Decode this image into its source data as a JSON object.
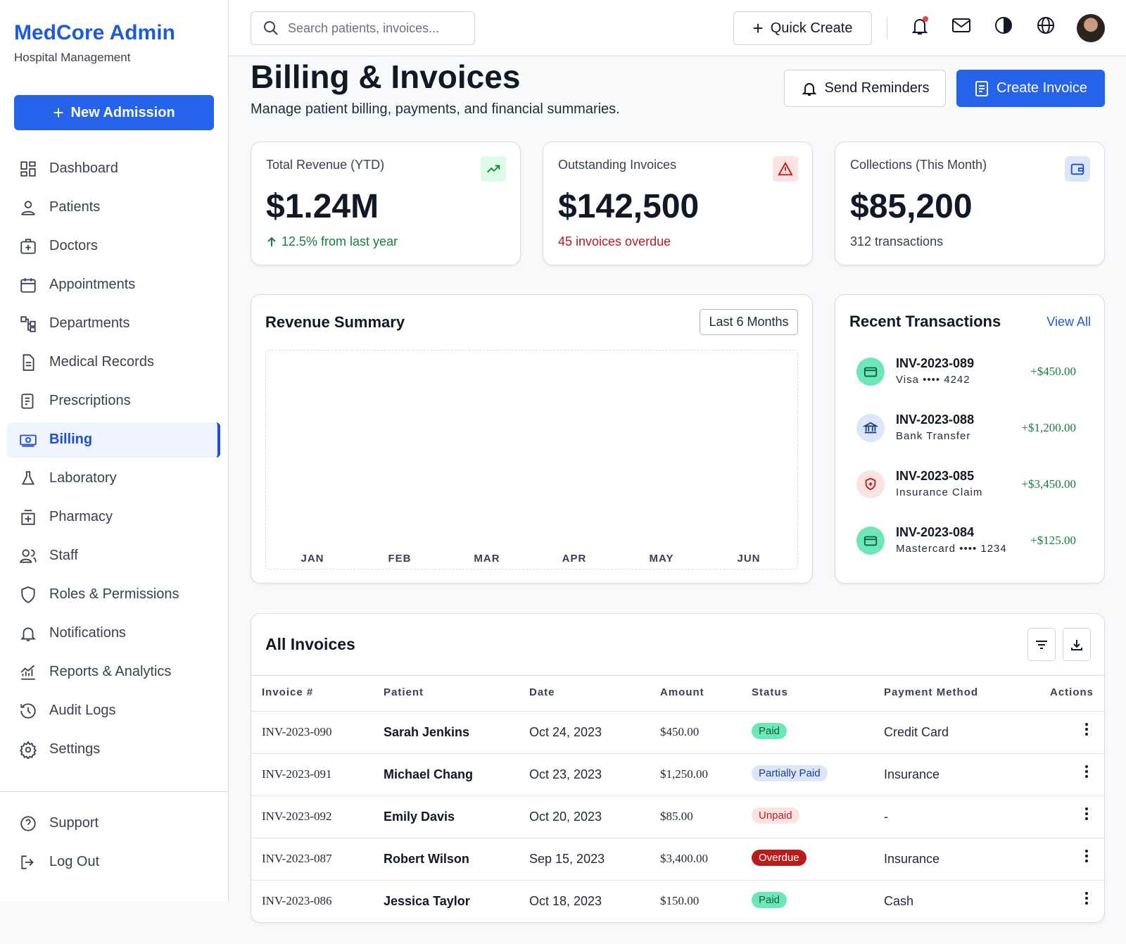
{
  "sidebar": {
    "brand": "MedCore Admin",
    "subtitle": "Hospital Management",
    "new_button": "New Admission",
    "nav": [
      {
        "label": "Dashboard"
      },
      {
        "label": "Patients"
      },
      {
        "label": "Doctors"
      },
      {
        "label": "Appointments"
      },
      {
        "label": "Departments"
      },
      {
        "label": "Medical Records"
      },
      {
        "label": "Prescriptions"
      },
      {
        "label": "Billing",
        "active": true
      },
      {
        "label": "Laboratory"
      },
      {
        "label": "Pharmacy"
      },
      {
        "label": "Staff"
      },
      {
        "label": "Roles & Permissions"
      },
      {
        "label": "Notifications"
      },
      {
        "label": "Reports & Analytics"
      },
      {
        "label": "Audit Logs"
      },
      {
        "label": "Settings"
      }
    ],
    "footer_nav": [
      "Support",
      "Log Out"
    ]
  },
  "header": {
    "search_placeholder": "Search patients, invoices...",
    "quick_create": "Quick Create"
  },
  "page": {
    "title": "Billing & Invoices",
    "subtitle": "Manage patient billing, payments, and financial summaries.",
    "buttons": [
      "Send Reminders",
      "Create Invoice"
    ]
  },
  "stats": [
    {
      "label": "Total Revenue (YTD)",
      "value": "$1.24M",
      "note": "12.5% from last year",
      "tone": "up"
    },
    {
      "label": "Outstanding Invoices",
      "value": "$142,500",
      "note": "45 invoices overdue",
      "tone": "down"
    },
    {
      "label": "Collections (This Month)",
      "value": "$85,200",
      "note": "312 transactions",
      "tone": "neutral"
    }
  ],
  "revenue_summary": {
    "title": "Revenue Summary",
    "range": "Last 6 Months",
    "months": [
      "JAN",
      "FEB",
      "MAR",
      "APR",
      "MAY",
      "JUN"
    ]
  },
  "transactions": {
    "title": "Recent Transactions",
    "link": "View All",
    "items": [
      {
        "id": "INV-2023-089",
        "method": "Visa •••• 4242",
        "amount": "+$450.00",
        "kind": "card"
      },
      {
        "id": "INV-2023-088",
        "method": "Bank Transfer",
        "amount": "+$1,200.00",
        "kind": "bank"
      },
      {
        "id": "INV-2023-085",
        "method": "Insurance Claim",
        "amount": "+$3,450.00",
        "kind": "insurance"
      },
      {
        "id": "INV-2023-084",
        "method": "Mastercard •••• 1234",
        "amount": "+$125.00",
        "kind": "card"
      }
    ]
  },
  "invoices": {
    "title": "All Invoices",
    "columns": [
      "Invoice #",
      "Patient",
      "Date",
      "Amount",
      "Status",
      "Payment Method",
      "Actions"
    ],
    "rows": [
      [
        "INV-2023-090",
        "Sarah Jenkins",
        "Oct 24, 2023",
        "$450.00",
        {
          "label": "Paid",
          "tone": "paid"
        },
        "Credit Card"
      ],
      [
        "INV-2023-091",
        "Michael Chang",
        "Oct 23, 2023",
        "$1,250.00",
        {
          "label": "Partially Paid",
          "tone": "partial"
        },
        "Insurance"
      ],
      [
        "INV-2023-092",
        "Emily Davis",
        "Oct 20, 2023",
        "$85.00",
        {
          "label": "Unpaid",
          "tone": "unpaid"
        },
        "-"
      ],
      [
        "INV-2023-087",
        "Robert Wilson",
        "Sep 15, 2023",
        "$3,400.00",
        {
          "label": "Overdue",
          "tone": "overdue"
        },
        "Insurance"
      ],
      [
        "INV-2023-086",
        "Jessica Taylor",
        "Oct 18, 2023",
        "$150.00",
        {
          "label": "Paid",
          "tone": "paid"
        },
        "Cash"
      ]
    ]
  }
}
